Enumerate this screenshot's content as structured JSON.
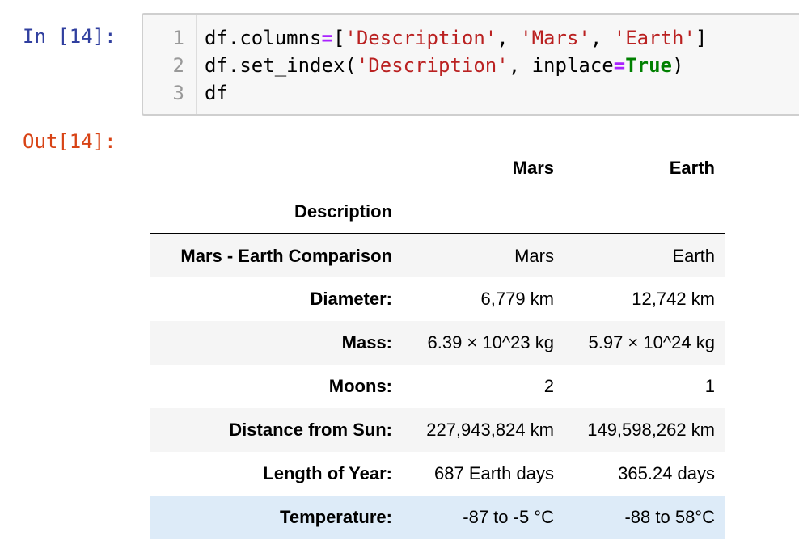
{
  "input_cell": {
    "prompt": "In [14]:",
    "line_numbers": [
      "1",
      "2",
      "3"
    ],
    "line1": {
      "a": "df.columns",
      "eq": "=",
      "b": "[",
      "s1": "'Description'",
      "c1": ", ",
      "s2": "'Mars'",
      "c2": ", ",
      "s3": "'Earth'",
      "end": "]"
    },
    "line2": {
      "a": "df.set_index(",
      "s1": "'Description'",
      "b": ", inplace",
      "eq": "=",
      "kw": "True",
      "end": ")"
    },
    "line3": "df"
  },
  "output_cell": {
    "prompt": "Out[14]:",
    "table": {
      "columns": [
        "Mars",
        "Earth"
      ],
      "index_name": "Description",
      "rows": [
        {
          "label": "Mars - Earth Comparison",
          "mars": "Mars",
          "earth": "Earth"
        },
        {
          "label": "Diameter:",
          "mars": "6,779 km",
          "earth": "12,742 km"
        },
        {
          "label": "Mass:",
          "mars": "6.39 × 10^23 kg",
          "earth": "5.97 × 10^24 kg"
        },
        {
          "label": "Moons:",
          "mars": "2",
          "earth": "1"
        },
        {
          "label": "Distance from Sun:",
          "mars": "227,943,824 km",
          "earth": "149,598,262 km"
        },
        {
          "label": "Length of Year:",
          "mars": "687 Earth days",
          "earth": "365.24 days"
        },
        {
          "label": "Temperature:",
          "mars": "-87 to -5 °C",
          "earth": "-88 to 58°C"
        }
      ]
    }
  },
  "colors": {
    "in_prompt": "#303f9f",
    "out_prompt": "#d84315",
    "string": "#ba2121",
    "operator": "#aa22ff",
    "keyword": "#008000",
    "hovered_row": "#ddebf8"
  }
}
